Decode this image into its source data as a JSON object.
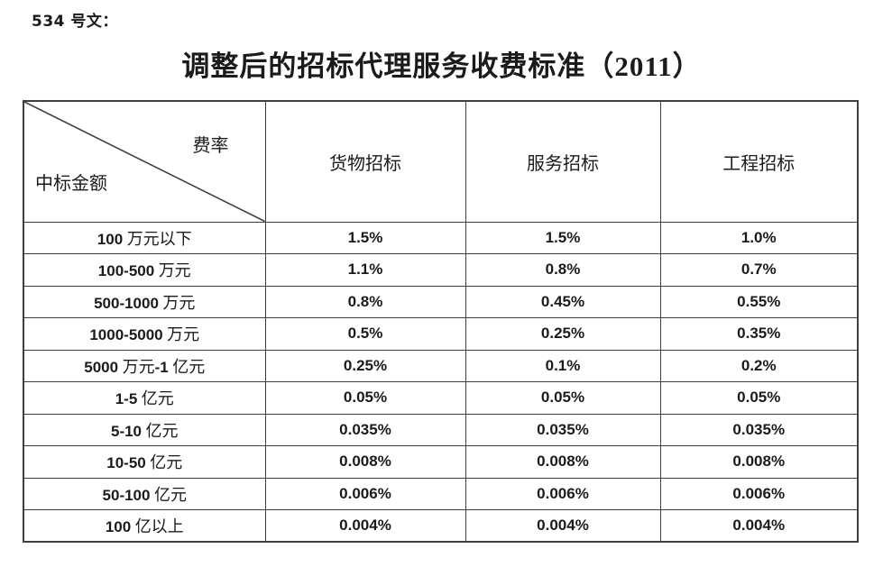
{
  "doc_label": "534 号文：",
  "title": "调整后的招标代理服务收费标准（2011）",
  "table": {
    "corner": {
      "top_right": "费率",
      "bottom_left": "中标金额"
    },
    "columns": [
      "货物招标",
      "服务招标",
      "工程招标"
    ],
    "rows": [
      {
        "range": "100 万元以下",
        "values": [
          "1.5%",
          "1.5%",
          "1.0%"
        ]
      },
      {
        "range": "100-500 万元",
        "values": [
          "1.1%",
          "0.8%",
          "0.7%"
        ]
      },
      {
        "range": "500-1000 万元",
        "values": [
          "0.8%",
          "0.45%",
          "0.55%"
        ]
      },
      {
        "range": "1000-5000 万元",
        "values": [
          "0.5%",
          "0.25%",
          "0.35%"
        ]
      },
      {
        "range": "5000 万元-1 亿元",
        "values": [
          "0.25%",
          "0.1%",
          "0.2%"
        ]
      },
      {
        "range": "1-5 亿元",
        "values": [
          "0.05%",
          "0.05%",
          "0.05%"
        ]
      },
      {
        "range": "5-10 亿元",
        "values": [
          "0.035%",
          "0.035%",
          "0.035%"
        ]
      },
      {
        "range": "10-50 亿元",
        "values": [
          "0.008%",
          "0.008%",
          "0.008%"
        ]
      },
      {
        "range": "50-100 亿元",
        "values": [
          "0.006%",
          "0.006%",
          "0.006%"
        ]
      },
      {
        "range": "100 亿以上",
        "values": [
          "0.004%",
          "0.004%",
          "0.004%"
        ]
      }
    ]
  },
  "colors": {
    "text": "#1b1b1b",
    "border": "#3e3e3e",
    "background": "#ffffff"
  }
}
